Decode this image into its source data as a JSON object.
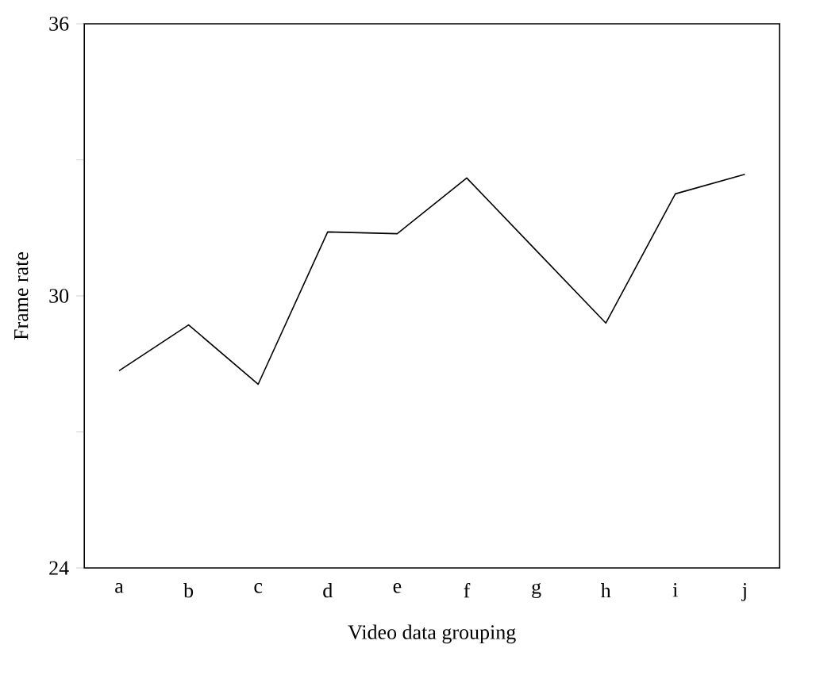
{
  "chart_data": {
    "type": "line",
    "xlabel": "Video data grouping",
    "ylabel": "Frame rate",
    "categories": [
      "a",
      "b",
      "c",
      "d",
      "e",
      "f",
      "g",
      "h",
      "i",
      "j"
    ],
    "series": [
      {
        "color": "#000000",
        "values": [
          28.35,
          29.36,
          28.05,
          31.41,
          31.37,
          32.6,
          31.0,
          29.4,
          32.25,
          32.68
        ]
      }
    ],
    "ylim": [
      24,
      36
    ],
    "yticks": [
      24,
      30,
      36,
      {
        "value": 27,
        "label": null
      },
      {
        "value": 33,
        "label": null
      }
    ],
    "grid": false,
    "marker": "none",
    "line_style": "solid"
  }
}
